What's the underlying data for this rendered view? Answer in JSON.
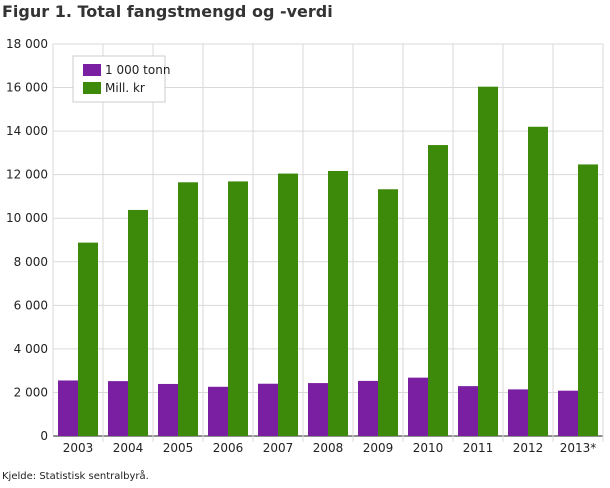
{
  "title": "Figur 1. Total fangstmengd og -verdi",
  "source": "Kjelde: Statistisk sentralbyrå.",
  "chart_data": {
    "type": "bar",
    "categories": [
      "2003",
      "2004",
      "2005",
      "2006",
      "2007",
      "2008",
      "2009",
      "2010",
      "2011",
      "2012",
      "2013*"
    ],
    "series": [
      {
        "name": "1 000 tonn",
        "color": "#7b1fa2",
        "values": [
          2550,
          2520,
          2390,
          2260,
          2400,
          2430,
          2530,
          2680,
          2290,
          2140,
          2080
        ]
      },
      {
        "name": "Mill. kr",
        "color": "#3d8a0a",
        "values": [
          8880,
          10380,
          11650,
          11690,
          12050,
          12170,
          11330,
          13360,
          16040,
          14200,
          12470
        ]
      }
    ],
    "ylim": [
      0,
      18000
    ],
    "yticks": [
      0,
      2000,
      4000,
      6000,
      8000,
      10000,
      12000,
      14000,
      16000,
      18000
    ],
    "ytick_labels": [
      "0",
      "2 000",
      "4 000",
      "6 000",
      "8 000",
      "10 000",
      "12 000",
      "14 000",
      "16 000",
      "18 000"
    ],
    "grid": true,
    "legend_position": "top-left"
  }
}
